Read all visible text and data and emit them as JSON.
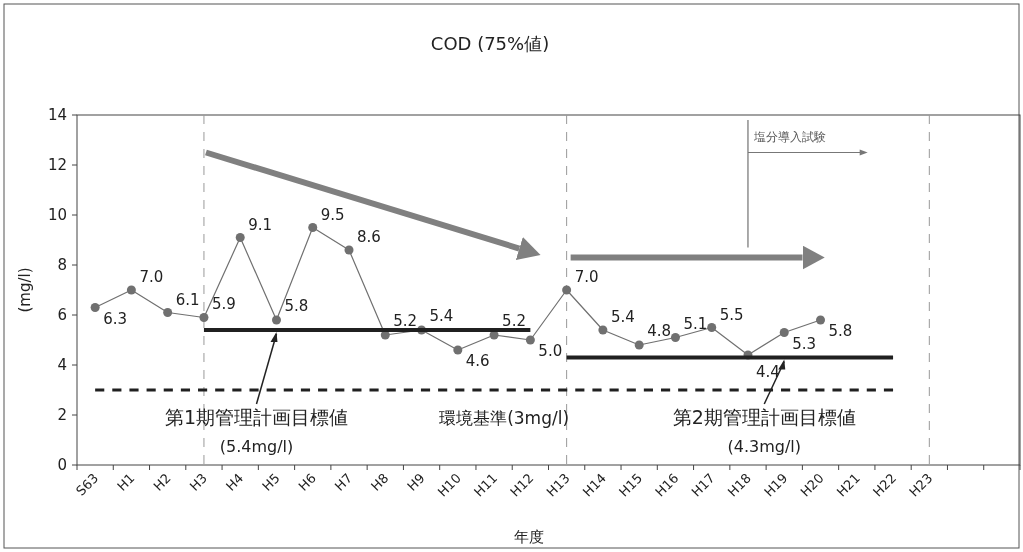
{
  "chart_data": {
    "type": "line",
    "title": "COD (75%値)",
    "xlabel": "年度",
    "ylabel": "(mg/l)",
    "categories": [
      "S63",
      "H1",
      "H2",
      "H3",
      "H4",
      "H5",
      "H6",
      "H7",
      "H8",
      "H9",
      "H10",
      "H11",
      "H12",
      "H13",
      "H14",
      "H15",
      "H16",
      "H17",
      "H18",
      "H19",
      "H20",
      "H21",
      "H22",
      "H23",
      null,
      null
    ],
    "series": [
      {
        "color": "#707070",
        "marker": "circle",
        "values": [
          6.3,
          7.0,
          6.1,
          5.9,
          9.1,
          5.8,
          9.5,
          8.6,
          5.2,
          5.4,
          4.6,
          5.2,
          5.0,
          7.0,
          5.4,
          4.8,
          5.1,
          5.5,
          4.4,
          5.3,
          5.8,
          null,
          null,
          null,
          null,
          null
        ],
        "value_labels": [
          "6.3",
          "7.0",
          "6.1",
          "5.9",
          "9.1",
          "5.8",
          "9.5",
          "8.6",
          "5.2",
          "5.4",
          "4.6",
          "5.2",
          "5.0",
          "7.0",
          "5.4",
          "4.8",
          "5.1",
          "5.5",
          "4.4",
          "5.3",
          "5.8",
          null,
          null,
          null,
          null,
          null
        ]
      },
      {
        "color": "#202020",
        "x": [
          "H3",
          "H12"
        ],
        "values": [
          5.4,
          5.4
        ],
        "line_style": "solid",
        "marker": "none"
      },
      {
        "color": "#202020",
        "x": [
          "H13",
          "H22"
        ],
        "values": [
          4.3,
          4.3
        ],
        "line_style": "solid",
        "marker": "none"
      },
      {
        "color": "#202020",
        "x": [
          "S63",
          "H22"
        ],
        "values": [
          3,
          3
        ],
        "line_style": "dashed",
        "marker": "none"
      }
    ],
    "ylim": [
      0,
      14
    ],
    "yticks": [
      0,
      2,
      4,
      6,
      8,
      10,
      12,
      14
    ],
    "ref_lines": [
      {
        "axis": "x",
        "value": "H3",
        "color": "#999999",
        "line_style": "dashed"
      },
      {
        "axis": "x",
        "value": "H13",
        "color": "#999999",
        "line_style": "dashed"
      },
      {
        "axis": "x",
        "value": "H23",
        "color": "#999999",
        "line_style": "dashed"
      }
    ],
    "annotations": [
      {
        "text": "第1期管理計画目標値\n(5.4mg/l)",
        "x": "H5",
        "y": 5.4
      },
      {
        "text": "環境基準(3mg/l)",
        "x": "H11",
        "y": 3
      },
      {
        "text": "第2期管理計画目標値\n(4.3mg/l)",
        "x": "H19",
        "y": 4.3
      },
      "塩分導入試験"
    ],
    "grid": false
  }
}
